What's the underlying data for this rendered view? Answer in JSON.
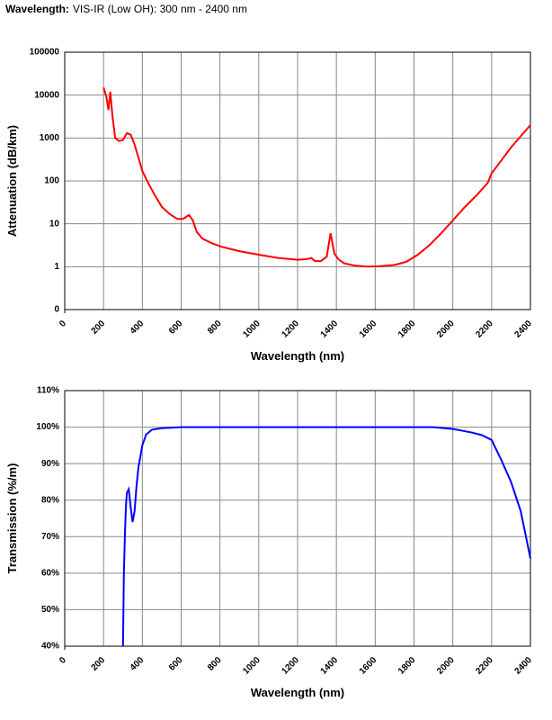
{
  "header": {
    "label": "Wavelength:",
    "value": "VIS-IR (Low OH): 300 nm - 2400 nm"
  },
  "chart_data": [
    {
      "type": "line",
      "xlabel": "Wavelength (nm)",
      "ylabel": "Attenuation (dB/km)",
      "log_y": true,
      "grid": true,
      "color": "#ff0000",
      "xlim": [
        0,
        2400
      ],
      "xticks": [
        0,
        200,
        400,
        600,
        800,
        1000,
        1200,
        1400,
        1600,
        1800,
        2000,
        2200,
        2400
      ],
      "ylim": [
        0.1,
        100000
      ],
      "yticks": [
        {
          "value": 0.1,
          "label": "0"
        },
        1,
        10,
        100,
        1000,
        10000,
        100000
      ],
      "x": [
        200,
        215,
        225,
        235,
        245,
        260,
        280,
        300,
        320,
        340,
        360,
        380,
        400,
        430,
        460,
        500,
        540,
        580,
        610,
        640,
        660,
        680,
        710,
        760,
        810,
        900,
        1000,
        1100,
        1200,
        1250,
        1270,
        1290,
        1320,
        1350,
        1370,
        1380,
        1390,
        1410,
        1440,
        1500,
        1560,
        1620,
        1700,
        1760,
        1820,
        1880,
        1940,
        2000,
        2060,
        2120,
        2180,
        2200,
        2250,
        2300,
        2350,
        2400
      ],
      "values": [
        15000,
        9000,
        4500,
        12000,
        3500,
        1000,
        850,
        900,
        1300,
        1200,
        700,
        350,
        170,
        90,
        50,
        25,
        17,
        13,
        13,
        16,
        12,
        6.5,
        4.5,
        3.5,
        2.9,
        2.3,
        1.9,
        1.6,
        1.45,
        1.5,
        1.6,
        1.35,
        1.35,
        1.7,
        6,
        3.5,
        2,
        1.5,
        1.2,
        1.05,
        1.0,
        1.02,
        1.1,
        1.3,
        1.9,
        3.2,
        6,
        12,
        24,
        45,
        90,
        150,
        300,
        600,
        1100,
        2000
      ]
    },
    {
      "type": "line",
      "xlabel": "Wavelength (nm)",
      "ylabel": "Transmission (%/m)",
      "log_y": false,
      "grid": true,
      "color": "#0000ff",
      "xlim": [
        0,
        2400
      ],
      "xticks": [
        0,
        200,
        400,
        600,
        800,
        1000,
        1200,
        1400,
        1600,
        1800,
        2000,
        2200,
        2400
      ],
      "ylim": [
        40,
        110
      ],
      "yticks": [
        {
          "value": 40,
          "label": "40%"
        },
        {
          "value": 50,
          "label": "50%"
        },
        {
          "value": 60,
          "label": "60%"
        },
        {
          "value": 70,
          "label": "70%"
        },
        {
          "value": 80,
          "label": "80%"
        },
        {
          "value": 90,
          "label": "90%"
        },
        {
          "value": 100,
          "label": "100%"
        },
        {
          "value": 110,
          "label": "110%"
        }
      ],
      "x": [
        300,
        305,
        310,
        315,
        320,
        330,
        340,
        350,
        360,
        370,
        380,
        400,
        420,
        450,
        500,
        600,
        800,
        1200,
        1600,
        1900,
        2000,
        2100,
        2150,
        2200,
        2250,
        2300,
        2350,
        2400
      ],
      "values": [
        40,
        60,
        70,
        78,
        82,
        83,
        78,
        74,
        77,
        84,
        89,
        95,
        98,
        99.3,
        99.7,
        100,
        100,
        100,
        100,
        100,
        99.5,
        98.5,
        97.8,
        96.5,
        91,
        85,
        77,
        64
      ]
    }
  ]
}
